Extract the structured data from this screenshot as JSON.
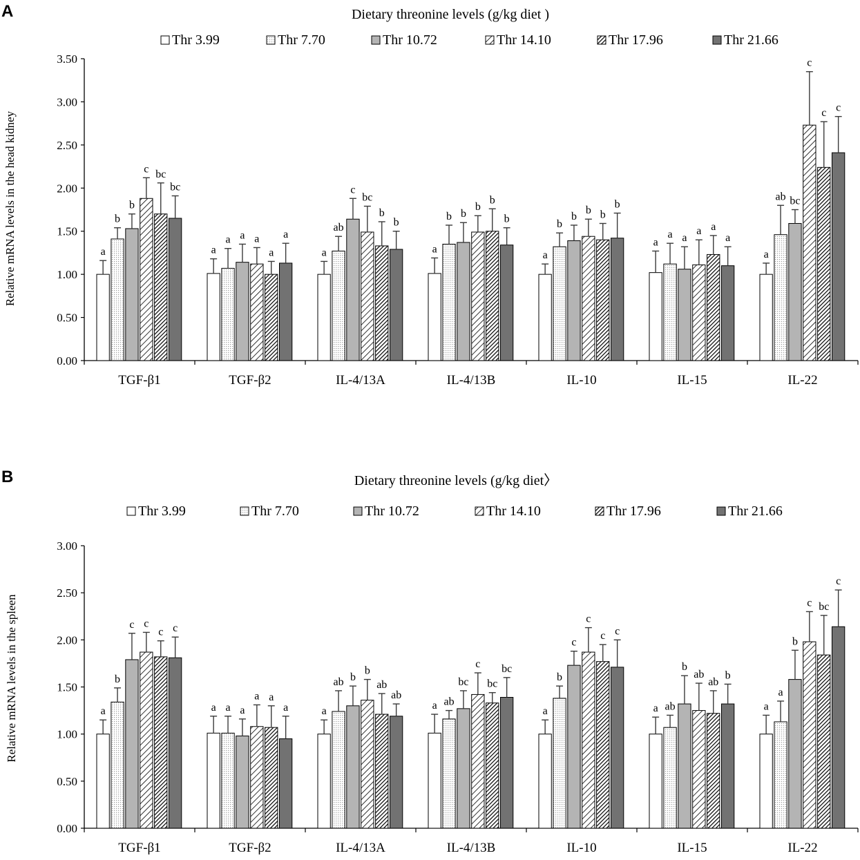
{
  "colors": {
    "bar_white": "#ffffff",
    "bar_dots_bg": "#ffffff",
    "bar_dots": "#9a9a9a",
    "bar_lightgray": "#b4b4b4",
    "bar_darkgray": "#727272",
    "stroke": "#000000",
    "error": "#3a3a3a"
  },
  "series_styles": [
    "white",
    "dots",
    "lightgray",
    "hatch-light",
    "hatch-dense",
    "darkgray"
  ],
  "chart_data": [
    {
      "panel": "A",
      "type": "bar",
      "title": "Dietary threonine levels (g/kg diet )",
      "ylabel": "Relative  mRNA  levels  in the head kidney",
      "xlabel": "",
      "ylim": [
        0,
        3.5
      ],
      "yticks": [
        "0.00",
        "0.50",
        "1.00",
        "1.50",
        "2.00",
        "2.50",
        "3.00",
        "3.50"
      ],
      "ytick_values": [
        0,
        0.5,
        1.0,
        1.5,
        2.0,
        2.5,
        3.0,
        3.5
      ],
      "grid": false,
      "legend_position": "top",
      "categories": [
        "TGF-β1",
        "TGF-β2",
        "IL-4/13A",
        "IL-4/13B",
        "IL-10",
        "IL-15",
        "IL-22"
      ],
      "series": [
        {
          "name": "Thr 3.99",
          "values": [
            1.0,
            1.01,
            1.0,
            1.01,
            1.0,
            1.02,
            1.0
          ],
          "errors": [
            0.16,
            0.17,
            0.15,
            0.18,
            0.12,
            0.25,
            0.13
          ],
          "labels": [
            "a",
            "a",
            "a",
            "a",
            "a",
            "a",
            "a"
          ]
        },
        {
          "name": "Thr 7.70",
          "values": [
            1.41,
            1.07,
            1.27,
            1.35,
            1.32,
            1.12,
            1.46
          ],
          "errors": [
            0.13,
            0.23,
            0.17,
            0.22,
            0.16,
            0.24,
            0.34
          ],
          "labels": [
            "b",
            "a",
            "ab",
            "b",
            "b",
            "a",
            "ab"
          ]
        },
        {
          "name": "Thr 10.72",
          "values": [
            1.53,
            1.14,
            1.64,
            1.37,
            1.39,
            1.06,
            1.59
          ],
          "errors": [
            0.17,
            0.21,
            0.24,
            0.23,
            0.18,
            0.26,
            0.16
          ],
          "labels": [
            "b",
            "a",
            "c",
            "b",
            "b",
            "a",
            "bc"
          ]
        },
        {
          "name": "Thr 14.10",
          "values": [
            1.88,
            1.12,
            1.49,
            1.49,
            1.44,
            1.11,
            2.73
          ],
          "errors": [
            0.24,
            0.19,
            0.3,
            0.19,
            0.2,
            0.29,
            0.62
          ],
          "labels": [
            "c",
            "a",
            "bc",
            "b",
            "b",
            "a",
            "c"
          ]
        },
        {
          "name": "Thr 17.96",
          "values": [
            1.7,
            1.0,
            1.33,
            1.5,
            1.4,
            1.23,
            2.24
          ],
          "errors": [
            0.36,
            0.15,
            0.28,
            0.26,
            0.19,
            0.22,
            0.53
          ],
          "labels": [
            "bc",
            "a",
            "b",
            "b",
            "b",
            "a",
            "c"
          ]
        },
        {
          "name": "Thr 21.66",
          "values": [
            1.65,
            1.13,
            1.29,
            1.34,
            1.42,
            1.1,
            2.41
          ],
          "errors": [
            0.26,
            0.23,
            0.21,
            0.2,
            0.29,
            0.22,
            0.42
          ],
          "labels": [
            "bc",
            "a",
            "b",
            "b",
            "b",
            "a",
            "c"
          ]
        }
      ]
    },
    {
      "panel": "B",
      "type": "bar",
      "title": "Dietary threonine levels (g/kg diet〉",
      "ylabel": "Relative  mRNA  levels  in the spleen",
      "xlabel": "",
      "ylim": [
        0,
        3.0
      ],
      "yticks": [
        "0.00",
        "0.50",
        "1.00",
        "1.50",
        "2.00",
        "2.50",
        "3.00"
      ],
      "ytick_values": [
        0,
        0.5,
        1.0,
        1.5,
        2.0,
        2.5,
        3.0
      ],
      "grid": false,
      "legend_position": "top",
      "categories": [
        "TGF-β1",
        "TGF-β2",
        "IL-4/13A",
        "IL-4/13B",
        "IL-10",
        "IL-15",
        "IL-22"
      ],
      "series": [
        {
          "name": "Thr 3.99",
          "values": [
            1.0,
            1.01,
            1.0,
            1.01,
            1.0,
            1.0,
            1.0
          ],
          "errors": [
            0.15,
            0.18,
            0.15,
            0.2,
            0.15,
            0.18,
            0.2
          ],
          "labels": [
            "a",
            "a",
            "a",
            "a",
            "a",
            "a",
            "a"
          ]
        },
        {
          "name": "Thr 7.70",
          "values": [
            1.34,
            1.01,
            1.24,
            1.16,
            1.38,
            1.07,
            1.13
          ],
          "errors": [
            0.15,
            0.18,
            0.22,
            0.09,
            0.13,
            0.13,
            0.22
          ],
          "labels": [
            "b",
            "a",
            "ab",
            "ab",
            "b",
            "ab",
            "a"
          ]
        },
        {
          "name": "Thr 10.72",
          "values": [
            1.79,
            0.98,
            1.3,
            1.27,
            1.73,
            1.32,
            1.58
          ],
          "errors": [
            0.28,
            0.18,
            0.21,
            0.19,
            0.15,
            0.3,
            0.31
          ],
          "labels": [
            "c",
            "a",
            "b",
            "bc",
            "c",
            "b",
            "b"
          ]
        },
        {
          "name": "Thr 14.10",
          "values": [
            1.87,
            1.08,
            1.36,
            1.42,
            1.87,
            1.25,
            1.98
          ],
          "errors": [
            0.21,
            0.23,
            0.22,
            0.23,
            0.26,
            0.29,
            0.32
          ],
          "labels": [
            "c",
            "a",
            "b",
            "c",
            "c",
            "ab",
            "c"
          ]
        },
        {
          "name": "Thr 17.96",
          "values": [
            1.82,
            1.07,
            1.21,
            1.33,
            1.77,
            1.22,
            1.84
          ],
          "errors": [
            0.17,
            0.23,
            0.22,
            0.11,
            0.18,
            0.24,
            0.42
          ],
          "labels": [
            "c",
            "a",
            "ab",
            "bc",
            "c",
            "ab",
            "bc"
          ]
        },
        {
          "name": "Thr 21.66",
          "values": [
            1.81,
            0.95,
            1.19,
            1.39,
            1.71,
            1.32,
            2.14
          ],
          "errors": [
            0.22,
            0.24,
            0.13,
            0.21,
            0.29,
            0.21,
            0.39
          ],
          "labels": [
            "c",
            "a",
            "ab",
            "bc",
            "c",
            "b",
            "c"
          ]
        }
      ]
    }
  ]
}
